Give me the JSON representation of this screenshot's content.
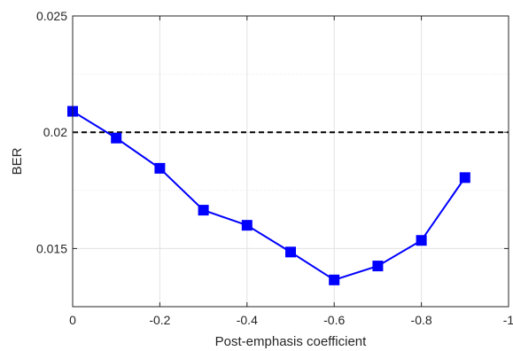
{
  "chart_data": {
    "type": "line",
    "title": "",
    "xlabel": "Post-emphasis coefficient",
    "ylabel": "BER",
    "xlim": [
      0,
      -1
    ],
    "ylim": [
      0.0125,
      0.025
    ],
    "x_reversed": true,
    "grid": true,
    "x_ticks": [
      0,
      -0.2,
      -0.4,
      -0.6,
      -0.8,
      -1
    ],
    "x_tick_labels": [
      "0",
      "-0.2",
      "-0.4",
      "-0.6",
      "-0.8",
      "-1"
    ],
    "y_ticks": [
      0.015,
      0.02,
      0.025
    ],
    "y_tick_labels": [
      "0.015",
      "0.02",
      "0.025"
    ],
    "series": [
      {
        "color": "#0000ff",
        "marker": "square",
        "x": [
          0,
          -0.1,
          -0.2,
          -0.3,
          -0.4,
          -0.5,
          -0.6,
          -0.7,
          -0.8,
          -0.9
        ],
        "y": [
          0.0209,
          0.01975,
          0.01845,
          0.01665,
          0.016,
          0.01485,
          0.01365,
          0.01425,
          0.01535,
          0.01805
        ]
      }
    ],
    "reference_line": {
      "y": 0.02,
      "style": "dashed",
      "color": "#000000"
    }
  }
}
